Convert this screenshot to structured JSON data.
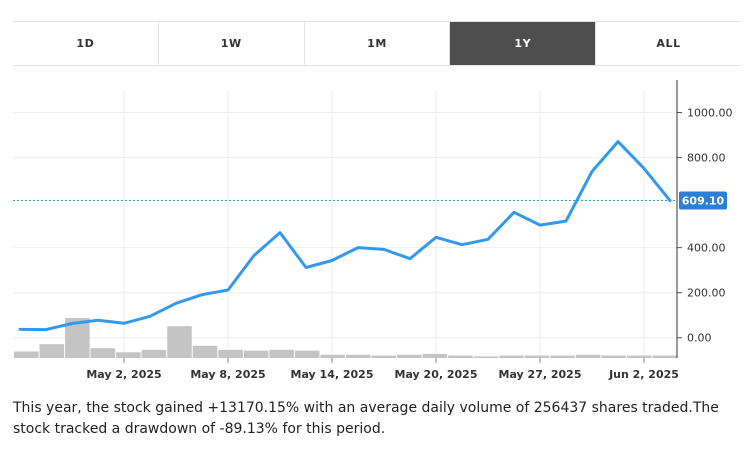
{
  "range_tabs": [
    {
      "label": "1D",
      "active": false
    },
    {
      "label": "1W",
      "active": false
    },
    {
      "label": "1M",
      "active": false
    },
    {
      "label": "1Y",
      "active": true
    },
    {
      "label": "ALL",
      "active": false
    }
  ],
  "chart_data": {
    "type": "line",
    "title": "",
    "xlabel": "",
    "ylabel": "",
    "y_ticks": [
      "0.00",
      "200.00",
      "400.00",
      "800.00",
      "1000.00"
    ],
    "y_tick_values": [
      0,
      200,
      400,
      800,
      1000
    ],
    "ylim": [
      -90,
      1100
    ],
    "x_ticks": [
      "May 2, 2025",
      "May 8, 2025",
      "May 14, 2025",
      "May 20, 2025",
      "May 27, 2025",
      "Jun 2, 2025"
    ],
    "x_tick_index": [
      4,
      8,
      12,
      16,
      20,
      24
    ],
    "grid": true,
    "current_value": 609.1,
    "current_label": "609.10",
    "accent_color": "#3399ee",
    "series": [
      {
        "values": [
          37,
          36,
          63,
          78,
          64,
          95,
          153,
          191,
          212,
          365,
          467,
          312,
          343,
          400,
          392,
          351,
          446,
          413,
          437,
          557,
          500,
          518,
          738,
          871,
          752,
          609
        ]
      }
    ],
    "volume": [
      8,
      17,
      49,
      12,
      7,
      10,
      39,
      15,
      10,
      9,
      10,
      9,
      4,
      4,
      3,
      4,
      5,
      3,
      2,
      3,
      3,
      3,
      4,
      3,
      3,
      3
    ]
  },
  "summary_text": "This year, the stock gained +13170.15% with an average daily volume of 256437 shares traded.The stock tracked a drawdown of -89.13% for this period."
}
